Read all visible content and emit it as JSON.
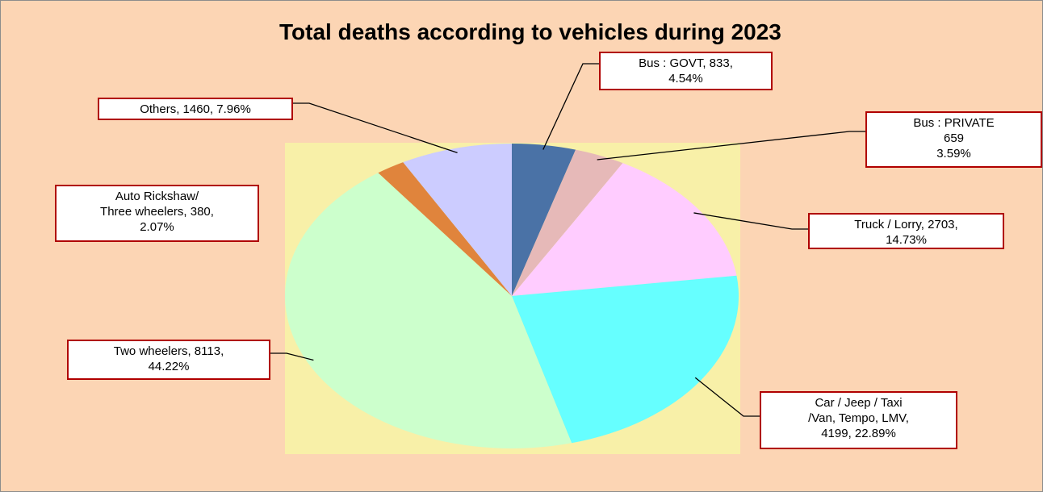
{
  "chart_data": {
    "type": "pie",
    "title": "Total deaths according to vehicles during 2023",
    "values": [
      833,
      659,
      2703,
      4199,
      8113,
      380,
      1460
    ],
    "value_labels": [
      "Bus :  GOVT, 833,\n4.54%",
      "Bus :   PRIVATE\n659\n3.59%",
      "Truck / Lorry, 2703,\n14.73%",
      "Car / Jeep / Taxi\n/Van, Tempo, LMV,\n4199, 22.89%",
      "Two wheelers, 8113,\n44.22%",
      "Auto Rickshaw/\nThree wheelers, 380,\n2.07%",
      "Others, 1460, 7.96%"
    ],
    "colors": [
      "#4a72a6",
      "#e6b9b8",
      "#ffccff",
      "#66ffff",
      "#ccffcc",
      "#e0843c",
      "#ccccff"
    ]
  }
}
